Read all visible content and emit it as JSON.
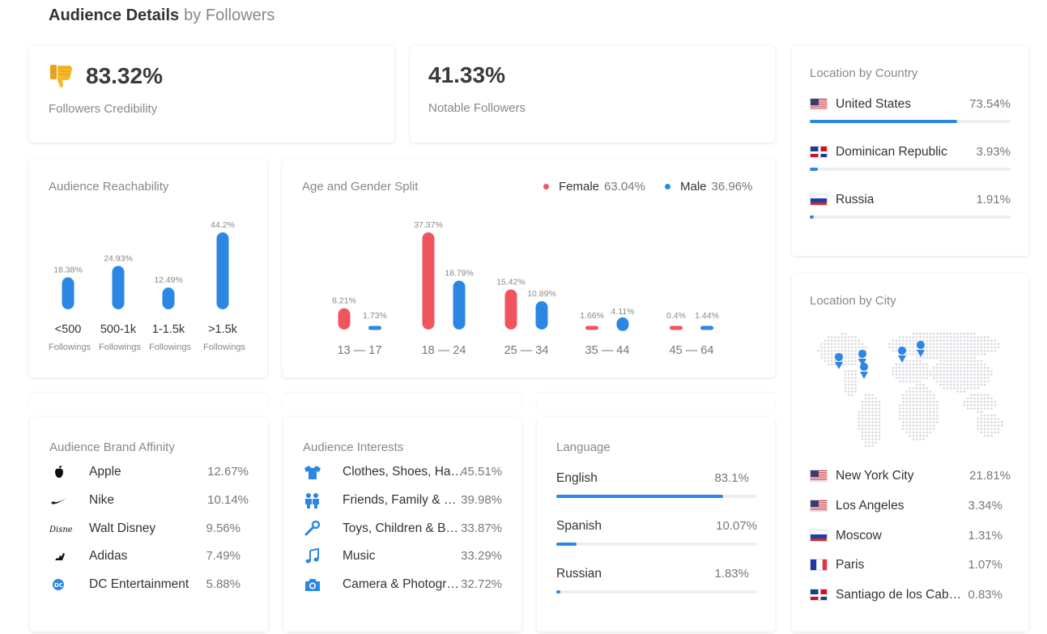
{
  "header": {
    "title": "Audience Details",
    "subtitle": "by Followers"
  },
  "credibility": {
    "value": "83.32%",
    "label": "Followers Credibility",
    "icon": "thumbs-down-icon"
  },
  "notable": {
    "value": "41.33%",
    "label": "Notable Followers"
  },
  "country": {
    "title": "Location by Country",
    "items": [
      {
        "name": "United States",
        "pct": "73.54%",
        "value": 73.54,
        "flag": "us-flag-icon"
      },
      {
        "name": "Dominican Republic",
        "pct": "3.93%",
        "value": 3.93,
        "flag": "do-flag-icon"
      },
      {
        "name": "Russia",
        "pct": "1.91%",
        "value": 1.91,
        "flag": "ru-flag-icon"
      }
    ]
  },
  "city": {
    "title": "Location by City",
    "items": [
      {
        "name": "New York City",
        "pct": "21.81%",
        "flag": "us-flag-icon"
      },
      {
        "name": "Los Angeles",
        "pct": "3.34%",
        "flag": "us-flag-icon"
      },
      {
        "name": "Moscow",
        "pct": "1.31%",
        "flag": "ru-flag-icon"
      },
      {
        "name": "Paris",
        "pct": "1.07%",
        "flag": "fr-flag-icon"
      },
      {
        "name": "Santiago de los Caballeros",
        "pct": "0.83%",
        "flag": "do-flag-icon"
      }
    ]
  },
  "brands": {
    "title": "Audience Brand Affinity",
    "items": [
      {
        "name": "Apple",
        "pct": "12.67%",
        "icon": "apple-logo-icon"
      },
      {
        "name": "Nike",
        "pct": "10.14%",
        "icon": "nike-logo-icon"
      },
      {
        "name": "Walt Disney",
        "pct": "9.56%",
        "icon": "disney-logo-icon"
      },
      {
        "name": "Adidas",
        "pct": "7.49%",
        "icon": "adidas-logo-icon"
      },
      {
        "name": "DC Entertainment",
        "pct": "5.88%",
        "icon": "dc-logo-icon"
      }
    ]
  },
  "interests": {
    "title": "Audience Interests",
    "items": [
      {
        "name": "Clothes, Shoes, Handbags & Accessories",
        "pct": "45.51%",
        "icon": "tshirt-icon"
      },
      {
        "name": "Friends, Family & Relationships",
        "pct": "39.98%",
        "icon": "people-icon"
      },
      {
        "name": "Toys, Children & Baby",
        "pct": "33.87%",
        "icon": "rattle-icon"
      },
      {
        "name": "Music",
        "pct": "33.29%",
        "icon": "music-note-icon"
      },
      {
        "name": "Camera & Photography",
        "pct": "32.72%",
        "icon": "camera-icon"
      }
    ]
  },
  "language": {
    "title": "Language",
    "items": [
      {
        "name": "English",
        "pct": "83.1%",
        "value": 83.1
      },
      {
        "name": "Spanish",
        "pct": "10.07%",
        "value": 10.07
      },
      {
        "name": "Russian",
        "pct": "1.83%",
        "value": 1.83
      }
    ]
  },
  "colors": {
    "blue": "#2b87e3",
    "red": "#f0555f",
    "track": "#eceff2"
  },
  "chart_data": [
    {
      "type": "bar",
      "title": "Audience Reachability",
      "categories": [
        "<500",
        "500-1k",
        "1-1.5k",
        ">1.5k"
      ],
      "category_sublabel": "Followings",
      "values": [
        18.38,
        24.93,
        12.49,
        44.2
      ],
      "labels": [
        "18.38%",
        "24.93%",
        "12.49%",
        "44.2%"
      ],
      "color": "#2b87e3"
    },
    {
      "type": "bar",
      "title": "Age and Gender Split",
      "categories": [
        "13 — 17",
        "18 — 24",
        "25 — 34",
        "35 — 44",
        "45 — 64"
      ],
      "legend_position": "top-right",
      "series": [
        {
          "name": "Female",
          "total": "63.04%",
          "color": "#f0555f",
          "values": [
            8.21,
            37.37,
            15.42,
            1.66,
            0.4
          ],
          "labels": [
            "8.21%",
            "37.37%",
            "15.42%",
            "1.66%",
            "0.4%"
          ]
        },
        {
          "name": "Male",
          "total": "36.96%",
          "color": "#2b87e3",
          "values": [
            1.73,
            18.79,
            10.89,
            4.11,
            1.44
          ],
          "labels": [
            "1.73%",
            "18.79%",
            "10.89%",
            "4.11%",
            "1.44%"
          ]
        }
      ]
    }
  ]
}
